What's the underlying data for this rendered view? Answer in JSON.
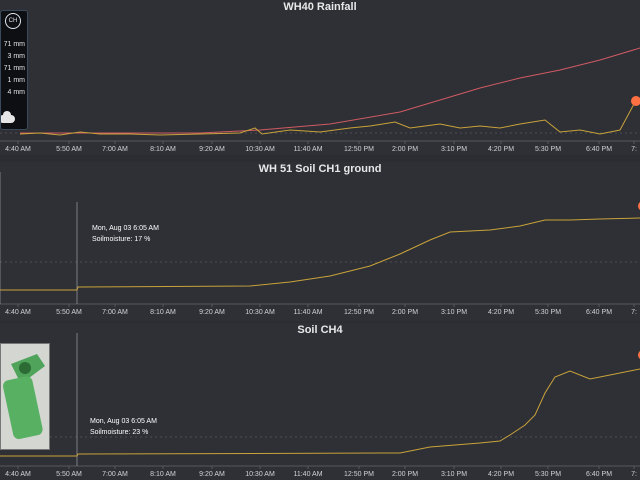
{
  "panels": [
    {
      "title": "WH40 Rainfall",
      "ticks": [
        "4:40 AM",
        "5:50 AM",
        "7:00 AM",
        "8:10 AM",
        "9:20 AM",
        "10:30 AM",
        "11:40 AM",
        "12:50 PM",
        "2:00 PM",
        "3:10 PM",
        "4:20 PM",
        "5:30 PM",
        "6:40 PM",
        "7:"
      ]
    },
    {
      "title": "WH 51 Soil CH1 ground",
      "ticks": [
        "4:40 AM",
        "5:50 AM",
        "7:00 AM",
        "8:10 AM",
        "9:20 AM",
        "10:30 AM",
        "11:40 AM",
        "12:50 PM",
        "2:00 PM",
        "3:10 PM",
        "4:20 PM",
        "5:30 PM",
        "6:40 PM",
        "7:"
      ],
      "tooltip": {
        "time": "Mon, Aug 03 6:05 AM",
        "value": "Soilmoisture: 17 %"
      }
    },
    {
      "title": "Soil CH4",
      "ticks": [
        "4:40 AM",
        "5:50 AM",
        "7:00 AM",
        "8:10 AM",
        "9:20 AM",
        "10:30 AM",
        "11:40 AM",
        "12:50 PM",
        "2:00 PM",
        "3:10 PM",
        "4:20 PM",
        "5:30 PM",
        "6:40 PM",
        "7:"
      ],
      "tooltip": {
        "time": "Mon, Aug 03 6:05 AM",
        "value": "Soilmoisture: 23 %"
      }
    }
  ],
  "widget": {
    "badge": "CH",
    "rows": [
      "71 mm",
      "3 mm",
      "71 mm",
      "1 mm",
      "4 mm"
    ]
  },
  "colors": {
    "background": "#2e3036",
    "series": "#c9a23a",
    "cumulative": "#d05a62",
    "marker": "#ff7043",
    "grid": "#6a6d73"
  }
}
